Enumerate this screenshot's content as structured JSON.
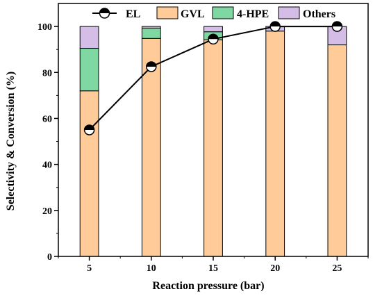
{
  "chart_data": {
    "type": "bar",
    "title": "",
    "xlabel": "Reaction pressure (bar)",
    "ylabel": "Selectivity & Conversion (%)",
    "categories": [
      "5",
      "10",
      "15",
      "20",
      "25"
    ],
    "x_ticks": [
      "5",
      "10",
      "15",
      "20",
      "25"
    ],
    "y_ticks": [
      "0",
      "20",
      "40",
      "60",
      "80",
      "100"
    ],
    "ylim": [
      0,
      110
    ],
    "stacked": true,
    "legend_position": "top",
    "series": [
      {
        "name": "GVL",
        "color": "#ffcc99",
        "values": [
          72,
          94.8,
          94.2,
          98,
          92
        ]
      },
      {
        "name": "4-HPE",
        "color": "#7fd8a2",
        "values": [
          18.5,
          4.5,
          3.5,
          0,
          0
        ]
      },
      {
        "name": "Others",
        "color": "#d4bde6",
        "values": [
          9.5,
          0.7,
          2.3,
          2,
          8
        ]
      }
    ],
    "line": {
      "name": "EL",
      "color": "#000000",
      "values": [
        55,
        82.5,
        94.5,
        100,
        100
      ]
    }
  }
}
